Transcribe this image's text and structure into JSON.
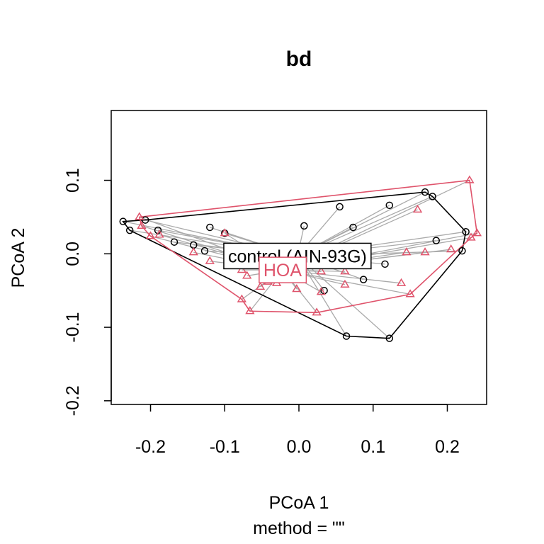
{
  "chart_data": {
    "type": "scatter",
    "title": "bd",
    "xlabel": "PCoA 1",
    "sublabel": "method = \"\"",
    "ylabel": "PCoA 2",
    "xlim": [
      -0.253,
      0.253
    ],
    "ylim": [
      -0.205,
      0.195
    ],
    "xticks": [
      -0.2,
      -0.1,
      0.0,
      0.1,
      0.2
    ],
    "xtick_labels": [
      "-0.2",
      "-0.1",
      "0.0",
      "0.1",
      "0.2"
    ],
    "yticks": [
      -0.2,
      -0.1,
      0.0,
      0.1
    ],
    "ytick_labels": [
      "-0.2",
      "-0.1",
      "0.0",
      "0.1"
    ],
    "grid": false,
    "spider_color": "#aaaaaa",
    "series": [
      {
        "name": "control (AIN-93G)",
        "color": "#000000",
        "marker": "circle",
        "centroid": [
          -0.002,
          -0.003
        ],
        "hull": [
          [
            -0.237,
            0.044
          ],
          [
            -0.207,
            0.046
          ],
          [
            0.17,
            0.084
          ],
          [
            0.18,
            0.078
          ],
          [
            0.225,
            0.03
          ],
          [
            0.22,
            0.004
          ],
          [
            0.122,
            -0.115
          ],
          [
            0.064,
            -0.112
          ],
          [
            -0.228,
            0.032
          ]
        ],
        "points": [
          [
            -0.237,
            0.044
          ],
          [
            -0.228,
            0.032
          ],
          [
            -0.207,
            0.046
          ],
          [
            -0.19,
            0.032
          ],
          [
            -0.168,
            0.016
          ],
          [
            -0.142,
            0.012
          ],
          [
            -0.127,
            0.004
          ],
          [
            -0.12,
            0.036
          ],
          [
            -0.1,
            0.028
          ],
          [
            0.007,
            0.038
          ],
          [
            0.055,
            0.064
          ],
          [
            0.073,
            0.036
          ],
          [
            0.122,
            0.066
          ],
          [
            0.17,
            0.084
          ],
          [
            0.18,
            0.078
          ],
          [
            0.116,
            -0.014
          ],
          [
            0.185,
            0.018
          ],
          [
            0.225,
            0.03
          ],
          [
            0.22,
            0.004
          ],
          [
            0.087,
            -0.035
          ],
          [
            0.034,
            -0.05
          ],
          [
            0.064,
            -0.112
          ],
          [
            0.122,
            -0.115
          ]
        ]
      },
      {
        "name": "HOA",
        "color": "#DF536B",
        "marker": "triangle",
        "centroid": [
          -0.022,
          -0.022
        ],
        "hull": [
          [
            -0.215,
            0.05
          ],
          [
            0.23,
            0.1
          ],
          [
            0.24,
            0.028
          ],
          [
            0.232,
            0.022
          ],
          [
            0.15,
            -0.055
          ],
          [
            0.024,
            -0.08
          ],
          [
            -0.066,
            -0.078
          ],
          [
            -0.077,
            -0.062
          ],
          [
            -0.2,
            0.024
          ],
          [
            -0.212,
            0.038
          ]
        ],
        "points": [
          [
            -0.215,
            0.05
          ],
          [
            -0.212,
            0.038
          ],
          [
            -0.2,
            0.024
          ],
          [
            -0.188,
            0.026
          ],
          [
            -0.142,
            0.002
          ],
          [
            -0.12,
            -0.01
          ],
          [
            -0.1,
            0.028
          ],
          [
            -0.085,
            -0.008
          ],
          [
            -0.077,
            -0.022
          ],
          [
            -0.07,
            -0.03
          ],
          [
            -0.077,
            -0.062
          ],
          [
            -0.066,
            -0.078
          ],
          [
            -0.052,
            -0.045
          ],
          [
            -0.042,
            -0.038
          ],
          [
            -0.03,
            -0.04
          ],
          [
            -0.003,
            -0.048
          ],
          [
            0.024,
            -0.08
          ],
          [
            0.03,
            -0.052
          ],
          [
            0.03,
            -0.024
          ],
          [
            0.062,
            -0.024
          ],
          [
            0.062,
            -0.042
          ],
          [
            0.138,
            -0.04
          ],
          [
            0.15,
            -0.055
          ],
          [
            0.145,
            0.002
          ],
          [
            0.17,
            0.002
          ],
          [
            0.205,
            0.006
          ],
          [
            0.16,
            0.06
          ],
          [
            0.232,
            0.022
          ],
          [
            0.24,
            0.028
          ],
          [
            0.23,
            0.1
          ]
        ]
      }
    ]
  }
}
